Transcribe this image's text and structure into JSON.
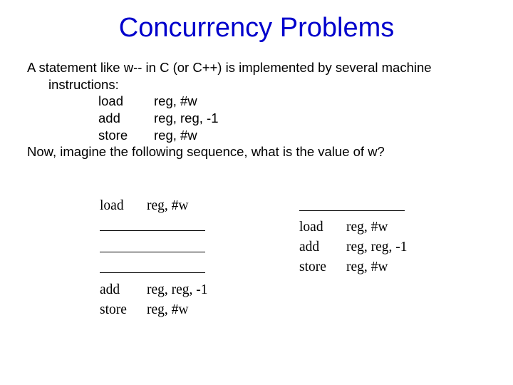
{
  "colors": {
    "title": "#0000cc",
    "text": "#000000",
    "background": "#ffffff"
  },
  "fonts": {
    "title_family": "Arial",
    "title_size_pt": 29,
    "body_family": "Arial",
    "body_size_pt": 14,
    "columns_family": "Times New Roman",
    "columns_size_pt": 15
  },
  "title": "Concurrency Problems",
  "intro": {
    "line1": "A statement like w-- in C (or C++) is implemented by several machine",
    "line2": "instructions:",
    "instr1_op": "load",
    "instr1_args": "reg, #w",
    "instr2_op": "add",
    "instr2_args": "reg, reg, -1",
    "instr3_op": "store",
    "instr3_args": "reg, #w",
    "line3": "Now, imagine the following sequence, what is the value of w?"
  },
  "left_col": {
    "r1_op": "load",
    "r1_args": "reg, #w",
    "r2_op": "add",
    "r2_args": "reg, reg, -1",
    "r3_op": "store",
    "r3_args": "reg, #w"
  },
  "right_col": {
    "r1_op": "load",
    "r1_args": "reg, #w",
    "r2_op": "add",
    "r2_args": "reg, reg, -1",
    "r3_op": "store",
    "r3_args": "reg, #w"
  }
}
